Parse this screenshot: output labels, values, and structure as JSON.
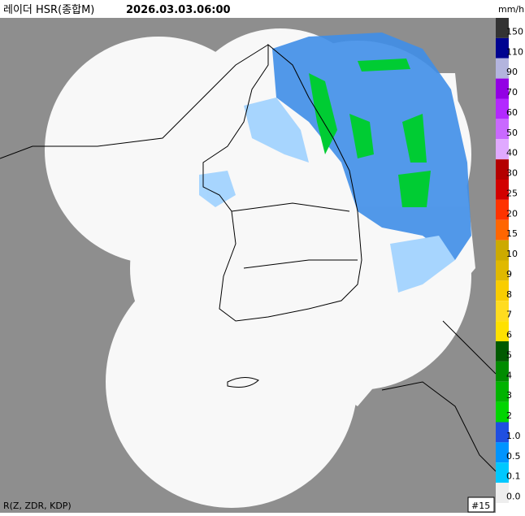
{
  "header": {
    "title": "레이더 HSR(종합M)",
    "time": "2026.03.03.06:00"
  },
  "legend": {
    "unit": "mm/h",
    "items": [
      {
        "label": "150",
        "color": "#333333"
      },
      {
        "label": "110",
        "color": "#000390"
      },
      {
        "label": "90",
        "color": "#b3b4de"
      },
      {
        "label": "70",
        "color": "#9300e4"
      },
      {
        "label": "60",
        "color": "#b329ff"
      },
      {
        "label": "50",
        "color": "#c969ff"
      },
      {
        "label": "40",
        "color": "#e0a9ff"
      },
      {
        "label": "30",
        "color": "#b40000"
      },
      {
        "label": "25",
        "color": "#d20000"
      },
      {
        "label": "20",
        "color": "#ff3300"
      },
      {
        "label": "15",
        "color": "#ff6600"
      },
      {
        "label": "10",
        "color": "#ccaa00"
      },
      {
        "label": "9",
        "color": "#e0b900"
      },
      {
        "label": "8",
        "color": "#f9cd00"
      },
      {
        "label": "7",
        "color": "#ffdc1f"
      },
      {
        "label": "6",
        "color": "#ffe100"
      },
      {
        "label": "5",
        "color": "#005a00"
      },
      {
        "label": "4",
        "color": "#008c00"
      },
      {
        "label": "3",
        "color": "#00b300"
      },
      {
        "label": "2",
        "color": "#00d500"
      },
      {
        "label": "1.0",
        "color": "#1f4fe0"
      },
      {
        "label": "0.5",
        "color": "#0094ff"
      },
      {
        "label": "0.1",
        "color": "#00c8ff"
      },
      {
        "label": "0.0",
        "color": "#eeeeee"
      }
    ]
  },
  "footer": {
    "method": "R(Z, ZDR, KDP)",
    "frame": "#15"
  }
}
